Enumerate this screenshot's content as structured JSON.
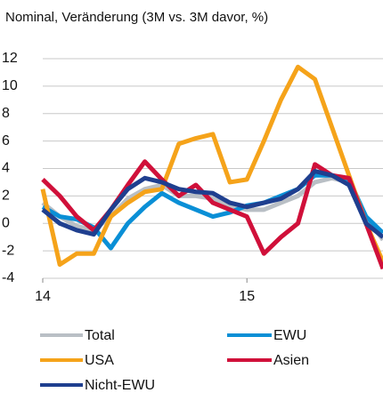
{
  "chart_data": {
    "type": "line",
    "title": "Nominal, Veränderung (3M vs. 3M davor, %)",
    "x": [
      0,
      1,
      2,
      3,
      4,
      5,
      6,
      7,
      8,
      9,
      10,
      11,
      12,
      13,
      14,
      15,
      16,
      17,
      18,
      19,
      20
    ],
    "xlim": [
      0,
      20
    ],
    "xticks": [
      {
        "value": 0,
        "label": "14"
      },
      {
        "value": 12,
        "label": "15"
      }
    ],
    "ylim": [
      -4,
      12
    ],
    "yticks": [
      -4,
      -2,
      0,
      2,
      4,
      6,
      8,
      10,
      12
    ],
    "grid": true,
    "series": [
      {
        "name": "Total",
        "color": "#b9bfc5",
        "values": [
          1.5,
          0.5,
          -0.2,
          -0.5,
          0.5,
          1.8,
          2.5,
          2.8,
          2,
          2,
          1.8,
          1.2,
          1,
          1,
          1.5,
          2,
          3,
          3.3,
          3,
          0.5,
          -1.2
        ]
      },
      {
        "name": "EWU",
        "color": "#0a8fd6",
        "values": [
          1.2,
          0.5,
          0.3,
          -0.3,
          -1.8,
          0,
          1.2,
          2.2,
          1.5,
          1,
          0.5,
          0.8,
          1.3,
          1.5,
          2,
          2.5,
          3.5,
          3.5,
          3.2,
          0.5,
          -0.7
        ]
      },
      {
        "name": "USA",
        "color": "#f5a31a",
        "values": [
          2.5,
          -3,
          -2.2,
          -2.2,
          0.5,
          1.5,
          2.3,
          2.5,
          5.8,
          6.2,
          6.5,
          3,
          3.2,
          6,
          9,
          11.4,
          10.5,
          7,
          3.5,
          0,
          -2.8
        ]
      },
      {
        "name": "Asien",
        "color": "#d0103a",
        "values": [
          3.2,
          2,
          0.5,
          -0.5,
          1,
          2.8,
          4.5,
          3.2,
          2,
          2.8,
          1.5,
          1,
          0.5,
          -2.2,
          -1,
          0,
          4.3,
          3.5,
          3.3,
          0,
          -3.3
        ]
      },
      {
        "name": "Nicht-EWU",
        "color": "#1f3f8f",
        "values": [
          1,
          0,
          -0.5,
          -0.8,
          1,
          2.5,
          3.3,
          3,
          2.5,
          2.3,
          2.2,
          1.5,
          1.2,
          1.5,
          1.8,
          2.5,
          3.8,
          3.5,
          2.8,
          0,
          -1
        ]
      }
    ]
  }
}
